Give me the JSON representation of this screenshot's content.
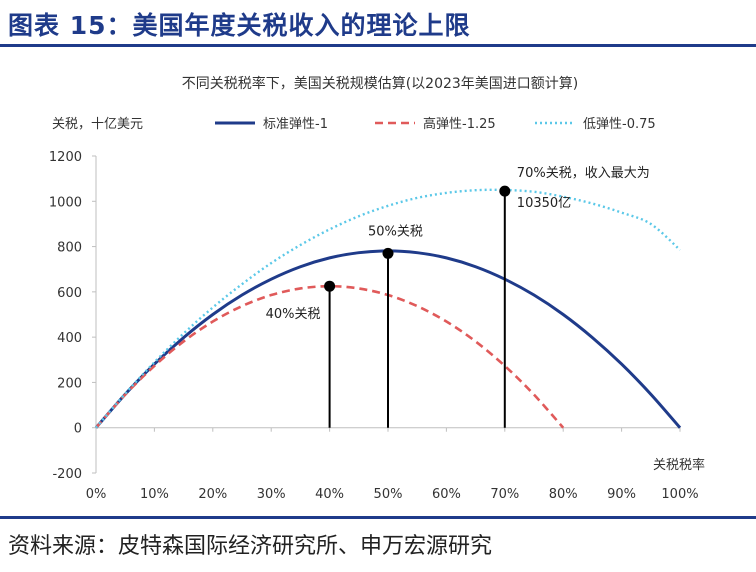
{
  "figure": {
    "title": "图表 15：美国年度关税收入的理论上限",
    "source": "资料来源：皮特森国际经济研究所、申万宏源研究"
  },
  "chart_data": {
    "type": "line",
    "title": "不同关税税率下，美国关税规模估算(以2023年美国进口额计算)",
    "ylabel": "关税，十亿美元",
    "xlabel": "关税税率",
    "ylim": [
      -200,
      1200
    ],
    "yticks": [
      -200,
      0,
      200,
      400,
      600,
      800,
      1000,
      1200
    ],
    "ytick_labels": [
      "-200",
      "0",
      "200",
      "400",
      "600",
      "800",
      "1000",
      "1200"
    ],
    "xlim": [
      0,
      100
    ],
    "xticks": [
      0,
      10,
      20,
      30,
      40,
      50,
      60,
      70,
      80,
      90,
      100
    ],
    "xtick_labels": [
      "0%",
      "10%",
      "20%",
      "30%",
      "40%",
      "50%",
      "60%",
      "70%",
      "80%",
      "90%",
      "100%"
    ],
    "grid": false,
    "legend": "top",
    "series": [
      {
        "name": "标准弹性-1",
        "color": "#1f3b8a",
        "style": "solid",
        "x": [
          0,
          5,
          10,
          15,
          20,
          25,
          30,
          35,
          40,
          45,
          50,
          55,
          60,
          65,
          70,
          75,
          80,
          85,
          90,
          95,
          100
        ],
        "values": [
          0,
          148,
          281,
          398,
          500,
          586,
          656,
          711,
          750,
          773,
          781,
          773,
          750,
          711,
          656,
          586,
          500,
          398,
          281,
          148,
          0
        ]
      },
      {
        "name": "高弹性-1.25",
        "color": "#e05a5a",
        "style": "dashed",
        "x": [
          0,
          5,
          10,
          15,
          20,
          25,
          30,
          35,
          40,
          45,
          50,
          55,
          60,
          65,
          70,
          75,
          80
        ],
        "values": [
          0,
          146,
          273,
          381,
          469,
          537,
          586,
          615,
          625,
          615,
          586,
          537,
          469,
          381,
          273,
          146,
          0
        ]
      },
      {
        "name": "低弹性-0.75",
        "color": "#5bc8e8",
        "style": "dotted",
        "x": [
          0,
          5,
          10,
          15,
          20,
          25,
          30,
          35,
          40,
          45,
          50,
          55,
          60,
          65,
          70,
          75,
          80,
          85,
          90,
          95,
          100
        ],
        "values": [
          0,
          150,
          289,
          416,
          531,
          634,
          727,
          807,
          876,
          934,
          980,
          1015,
          1037,
          1049,
          1050,
          1042,
          1020,
          990,
          950,
          900,
          785
        ]
      }
    ],
    "markers": [
      {
        "x": 40,
        "y": 625,
        "label": "40%关税"
      },
      {
        "x": 50,
        "y": 770,
        "label": "50%关税"
      },
      {
        "x": 70,
        "y": 1045,
        "label_lines": [
          "70%关税，收入最大为",
          "10350亿"
        ]
      }
    ]
  }
}
